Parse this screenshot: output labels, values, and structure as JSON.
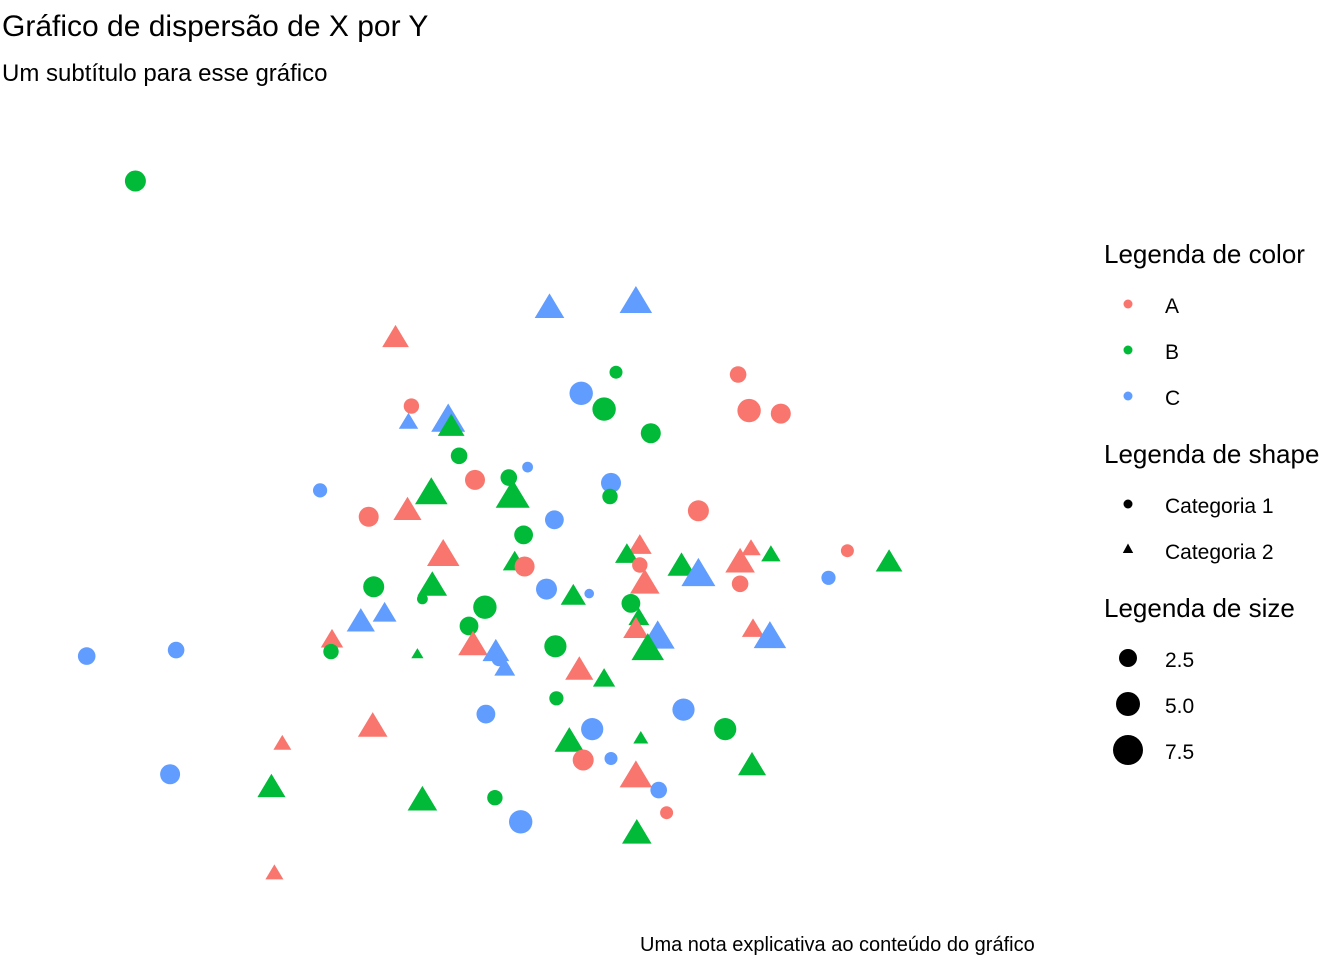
{
  "chart_data": {
    "type": "scatter",
    "title": "Gráfico de dispersão de X por Y",
    "subtitle": "Um subtítulo para esse gráfico",
    "caption": "Uma nota explicativa ao conteúdo do gráfico",
    "xlabel": "",
    "ylabel": "",
    "xlim": [
      0,
      100
    ],
    "ylim": [
      0,
      100
    ],
    "grid": false,
    "axes_visible": false,
    "legend_position": "right",
    "colors": {
      "A": "#F8766D",
      "B": "#00BA38",
      "C": "#619CFF"
    },
    "legends": {
      "color": {
        "title": "Legenda de color",
        "entries": [
          "A",
          "B",
          "C"
        ]
      },
      "shape": {
        "title": "Legenda de shape",
        "entries": [
          "Categoria 1",
          "Categoria 2"
        ],
        "symbols": [
          "circle",
          "triangle"
        ]
      },
      "size": {
        "title": "Legenda de size",
        "entries": [
          "2.5",
          "5.0",
          "7.5"
        ],
        "values": [
          2.5,
          5.0,
          7.5
        ]
      }
    },
    "points": [
      {
        "x": 8.8,
        "y": 93.1,
        "color": "B",
        "shape": "Categoria 1",
        "size": 7.0
      },
      {
        "x": 35.0,
        "y": 72.3,
        "color": "A",
        "shape": "Categoria 2",
        "size": 7.0
      },
      {
        "x": 50.5,
        "y": 76.3,
        "color": "C",
        "shape": "Categoria 2",
        "size": 8.0
      },
      {
        "x": 59.2,
        "y": 77.1,
        "color": "C",
        "shape": "Categoria 2",
        "size": 9.0
      },
      {
        "x": 57.2,
        "y": 67.7,
        "color": "B",
        "shape": "Categoria 1",
        "size": 3.5
      },
      {
        "x": 69.5,
        "y": 67.4,
        "color": "A",
        "shape": "Categoria 1",
        "size": 5.0
      },
      {
        "x": 53.7,
        "y": 64.9,
        "color": "C",
        "shape": "Categoria 1",
        "size": 8.0
      },
      {
        "x": 56.0,
        "y": 62.8,
        "color": "B",
        "shape": "Categoria 1",
        "size": 8.0
      },
      {
        "x": 70.6,
        "y": 62.6,
        "color": "A",
        "shape": "Categoria 1",
        "size": 8.0
      },
      {
        "x": 73.8,
        "y": 62.2,
        "color": "A",
        "shape": "Categoria 1",
        "size": 6.5
      },
      {
        "x": 36.6,
        "y": 63.2,
        "color": "A",
        "shape": "Categoria 1",
        "size": 4.5
      },
      {
        "x": 36.3,
        "y": 61.1,
        "color": "C",
        "shape": "Categoria 2",
        "size": 4.5
      },
      {
        "x": 40.3,
        "y": 61.4,
        "color": "C",
        "shape": "Categoria 2",
        "size": 9.5
      },
      {
        "x": 40.6,
        "y": 60.5,
        "color": "B",
        "shape": "Categoria 2",
        "size": 7.0
      },
      {
        "x": 60.7,
        "y": 59.6,
        "color": "B",
        "shape": "Categoria 1",
        "size": 6.5
      },
      {
        "x": 41.4,
        "y": 56.6,
        "color": "B",
        "shape": "Categoria 1",
        "size": 5.0
      },
      {
        "x": 48.3,
        "y": 55.1,
        "color": "C",
        "shape": "Categoria 1",
        "size": 2.5
      },
      {
        "x": 43.0,
        "y": 53.4,
        "color": "A",
        "shape": "Categoria 1",
        "size": 6.5
      },
      {
        "x": 46.4,
        "y": 53.7,
        "color": "B",
        "shape": "Categoria 1",
        "size": 5.0
      },
      {
        "x": 56.7,
        "y": 53.0,
        "color": "C",
        "shape": "Categoria 1",
        "size": 6.5
      },
      {
        "x": 38.6,
        "y": 51.7,
        "color": "B",
        "shape": "Categoria 2",
        "size": 9.0
      },
      {
        "x": 46.8,
        "y": 51.3,
        "color": "B",
        "shape": "Categoria 2",
        "size": 9.5
      },
      {
        "x": 56.6,
        "y": 51.2,
        "color": "B",
        "shape": "Categoria 1",
        "size": 4.5
      },
      {
        "x": 27.4,
        "y": 52.0,
        "color": "C",
        "shape": "Categoria 1",
        "size": 4.0
      },
      {
        "x": 36.2,
        "y": 49.4,
        "color": "A",
        "shape": "Categoria 2",
        "size": 7.5
      },
      {
        "x": 32.3,
        "y": 48.5,
        "color": "A",
        "shape": "Categoria 1",
        "size": 6.5
      },
      {
        "x": 65.5,
        "y": 49.3,
        "color": "A",
        "shape": "Categoria 1",
        "size": 7.0
      },
      {
        "x": 51.0,
        "y": 48.1,
        "color": "C",
        "shape": "Categoria 1",
        "size": 6.0
      },
      {
        "x": 47.9,
        "y": 46.1,
        "color": "B",
        "shape": "Categoria 1",
        "size": 6.0
      },
      {
        "x": 39.8,
        "y": 43.5,
        "color": "A",
        "shape": "Categoria 2",
        "size": 9.0
      },
      {
        "x": 59.6,
        "y": 44.7,
        "color": "A",
        "shape": "Categoria 2",
        "size": 6.0
      },
      {
        "x": 58.3,
        "y": 43.5,
        "color": "B",
        "shape": "Categoria 2",
        "size": 6.0
      },
      {
        "x": 70.8,
        "y": 44.3,
        "color": "A",
        "shape": "Categoria 2",
        "size": 4.5
      },
      {
        "x": 69.7,
        "y": 42.5,
        "color": "A",
        "shape": "Categoria 2",
        "size": 8.0
      },
      {
        "x": 72.8,
        "y": 43.5,
        "color": "B",
        "shape": "Categoria 2",
        "size": 4.5
      },
      {
        "x": 47.0,
        "y": 42.5,
        "color": "B",
        "shape": "Categoria 2",
        "size": 6.0
      },
      {
        "x": 59.6,
        "y": 42.1,
        "color": "A",
        "shape": "Categoria 1",
        "size": 4.5
      },
      {
        "x": 80.5,
        "y": 44.0,
        "color": "A",
        "shape": "Categoria 1",
        "size": 3.5
      },
      {
        "x": 84.7,
        "y": 42.5,
        "color": "B",
        "shape": "Categoria 2",
        "size": 7.0
      },
      {
        "x": 48.0,
        "y": 41.9,
        "color": "A",
        "shape": "Categoria 1",
        "size": 6.5
      },
      {
        "x": 63.8,
        "y": 42.0,
        "color": "B",
        "shape": "Categoria 2",
        "size": 7.5
      },
      {
        "x": 65.5,
        "y": 40.9,
        "color": "C",
        "shape": "Categoria 2",
        "size": 9.5
      },
      {
        "x": 60.1,
        "y": 39.7,
        "color": "A",
        "shape": "Categoria 2",
        "size": 8.0
      },
      {
        "x": 32.8,
        "y": 39.2,
        "color": "B",
        "shape": "Categoria 1",
        "size": 7.0
      },
      {
        "x": 38.7,
        "y": 39.4,
        "color": "B",
        "shape": "Categoria 2",
        "size": 8.0
      },
      {
        "x": 50.2,
        "y": 38.9,
        "color": "C",
        "shape": "Categoria 1",
        "size": 7.0
      },
      {
        "x": 52.9,
        "y": 38.0,
        "color": "B",
        "shape": "Categoria 2",
        "size": 6.5
      },
      {
        "x": 54.5,
        "y": 38.3,
        "color": "C",
        "shape": "Categoria 1",
        "size": 2.0
      },
      {
        "x": 69.7,
        "y": 39.6,
        "color": "A",
        "shape": "Categoria 1",
        "size": 5.0
      },
      {
        "x": 78.6,
        "y": 40.4,
        "color": "C",
        "shape": "Categoria 1",
        "size": 4.0
      },
      {
        "x": 37.7,
        "y": 37.6,
        "color": "B",
        "shape": "Categoria 1",
        "size": 2.5
      },
      {
        "x": 58.7,
        "y": 37.0,
        "color": "B",
        "shape": "Categoria 1",
        "size": 6.0
      },
      {
        "x": 44.0,
        "y": 36.5,
        "color": "B",
        "shape": "Categoria 1",
        "size": 8.0
      },
      {
        "x": 31.5,
        "y": 34.6,
        "color": "C",
        "shape": "Categoria 2",
        "size": 7.5
      },
      {
        "x": 33.9,
        "y": 35.7,
        "color": "C",
        "shape": "Categoria 2",
        "size": 6.0
      },
      {
        "x": 59.5,
        "y": 35.1,
        "color": "B",
        "shape": "Categoria 2",
        "size": 5.0
      },
      {
        "x": 42.4,
        "y": 34.0,
        "color": "B",
        "shape": "Categoria 1",
        "size": 6.0
      },
      {
        "x": 59.2,
        "y": 33.6,
        "color": "A",
        "shape": "Categoria 2",
        "size": 6.5
      },
      {
        "x": 71.0,
        "y": 33.6,
        "color": "A",
        "shape": "Categoria 2",
        "size": 5.5
      },
      {
        "x": 72.7,
        "y": 32.6,
        "color": "C",
        "shape": "Categoria 2",
        "size": 9.0
      },
      {
        "x": 61.4,
        "y": 32.6,
        "color": "C",
        "shape": "Categoria 2",
        "size": 9.5
      },
      {
        "x": 42.8,
        "y": 31.5,
        "color": "A",
        "shape": "Categoria 2",
        "size": 8.0
      },
      {
        "x": 28.6,
        "y": 32.2,
        "color": "A",
        "shape": "Categoria 2",
        "size": 5.5
      },
      {
        "x": 51.1,
        "y": 31.3,
        "color": "B",
        "shape": "Categoria 1",
        "size": 7.5
      },
      {
        "x": 60.4,
        "y": 31.0,
        "color": "B",
        "shape": "Categoria 2",
        "size": 9.0
      },
      {
        "x": 45.1,
        "y": 30.6,
        "color": "C",
        "shape": "Categoria 2",
        "size": 7.0
      },
      {
        "x": 37.2,
        "y": 30.3,
        "color": "B",
        "shape": "Categoria 2",
        "size": 2.0
      },
      {
        "x": 28.5,
        "y": 30.6,
        "color": "B",
        "shape": "Categoria 1",
        "size": 4.5
      },
      {
        "x": 12.9,
        "y": 30.8,
        "color": "C",
        "shape": "Categoria 1",
        "size": 5.0
      },
      {
        "x": 3.9,
        "y": 30.0,
        "color": "C",
        "shape": "Categoria 1",
        "size": 5.5
      },
      {
        "x": 45.4,
        "y": 29.6,
        "color": "C",
        "shape": "Categoria 1",
        "size": 4.0
      },
      {
        "x": 46.0,
        "y": 28.4,
        "color": "C",
        "shape": "Categoria 2",
        "size": 5.0
      },
      {
        "x": 53.5,
        "y": 28.2,
        "color": "A",
        "shape": "Categoria 2",
        "size": 7.5
      },
      {
        "x": 56.0,
        "y": 27.0,
        "color": "B",
        "shape": "Categoria 2",
        "size": 5.5
      },
      {
        "x": 51.2,
        "y": 24.4,
        "color": "B",
        "shape": "Categoria 1",
        "size": 4.0
      },
      {
        "x": 44.1,
        "y": 22.3,
        "color": "C",
        "shape": "Categoria 1",
        "size": 6.0
      },
      {
        "x": 64.0,
        "y": 22.9,
        "color": "C",
        "shape": "Categoria 1",
        "size": 7.5
      },
      {
        "x": 32.7,
        "y": 20.7,
        "color": "A",
        "shape": "Categoria 2",
        "size": 8.0
      },
      {
        "x": 54.8,
        "y": 20.3,
        "color": "C",
        "shape": "Categoria 1",
        "size": 7.5
      },
      {
        "x": 68.2,
        "y": 20.3,
        "color": "B",
        "shape": "Categoria 1",
        "size": 7.5
      },
      {
        "x": 52.5,
        "y": 18.7,
        "color": "B",
        "shape": "Categoria 2",
        "size": 8.0
      },
      {
        "x": 59.7,
        "y": 19.1,
        "color": "B",
        "shape": "Categoria 2",
        "size": 3.0
      },
      {
        "x": 23.6,
        "y": 18.4,
        "color": "A",
        "shape": "Categoria 2",
        "size": 4.0
      },
      {
        "x": 53.9,
        "y": 16.2,
        "color": "A",
        "shape": "Categoria 1",
        "size": 7.0
      },
      {
        "x": 56.7,
        "y": 16.4,
        "color": "C",
        "shape": "Categoria 1",
        "size": 3.5
      },
      {
        "x": 70.9,
        "y": 15.5,
        "color": "B",
        "shape": "Categoria 2",
        "size": 7.5
      },
      {
        "x": 59.2,
        "y": 14.1,
        "color": "A",
        "shape": "Categoria 2",
        "size": 9.0
      },
      {
        "x": 12.3,
        "y": 14.3,
        "color": "C",
        "shape": "Categoria 1",
        "size": 6.5
      },
      {
        "x": 22.5,
        "y": 12.6,
        "color": "B",
        "shape": "Categoria 2",
        "size": 7.5
      },
      {
        "x": 61.5,
        "y": 12.2,
        "color": "C",
        "shape": "Categoria 1",
        "size": 5.0
      },
      {
        "x": 37.7,
        "y": 10.9,
        "color": "B",
        "shape": "Categoria 2",
        "size": 8.0
      },
      {
        "x": 45.0,
        "y": 11.2,
        "color": "B",
        "shape": "Categoria 1",
        "size": 4.5
      },
      {
        "x": 62.3,
        "y": 9.2,
        "color": "A",
        "shape": "Categoria 1",
        "size": 3.5
      },
      {
        "x": 47.6,
        "y": 8.0,
        "color": "C",
        "shape": "Categoria 1",
        "size": 8.0
      },
      {
        "x": 59.3,
        "y": 6.5,
        "color": "B",
        "shape": "Categoria 2",
        "size": 8.0
      },
      {
        "x": 22.8,
        "y": 1.2,
        "color": "A",
        "shape": "Categoria 2",
        "size": 4.0
      }
    ]
  }
}
